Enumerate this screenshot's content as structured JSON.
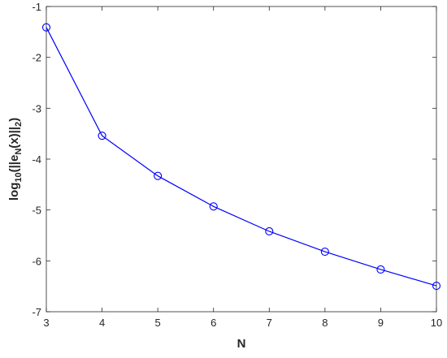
{
  "chart_data": {
    "type": "line",
    "xlabel": "N",
    "ylabel": [
      "log",
      "10",
      "(||e",
      "N",
      "(x)||",
      "2",
      ")"
    ],
    "x": [
      3,
      4,
      5,
      6,
      7,
      8,
      9,
      10
    ],
    "series": [
      {
        "color": "#0000ff",
        "marker": "circle",
        "values": [
          -1.41,
          -3.54,
          -4.33,
          -4.93,
          -5.42,
          -5.82,
          -6.17,
          -6.49
        ]
      }
    ],
    "xlim": [
      3,
      10
    ],
    "xticks": [
      3,
      4,
      5,
      6,
      7,
      8,
      9,
      10
    ],
    "ylim": [
      -7,
      -1
    ],
    "yticks": [
      -7,
      -6,
      -5,
      -4,
      -3,
      -2,
      -1
    ],
    "grid": false
  }
}
